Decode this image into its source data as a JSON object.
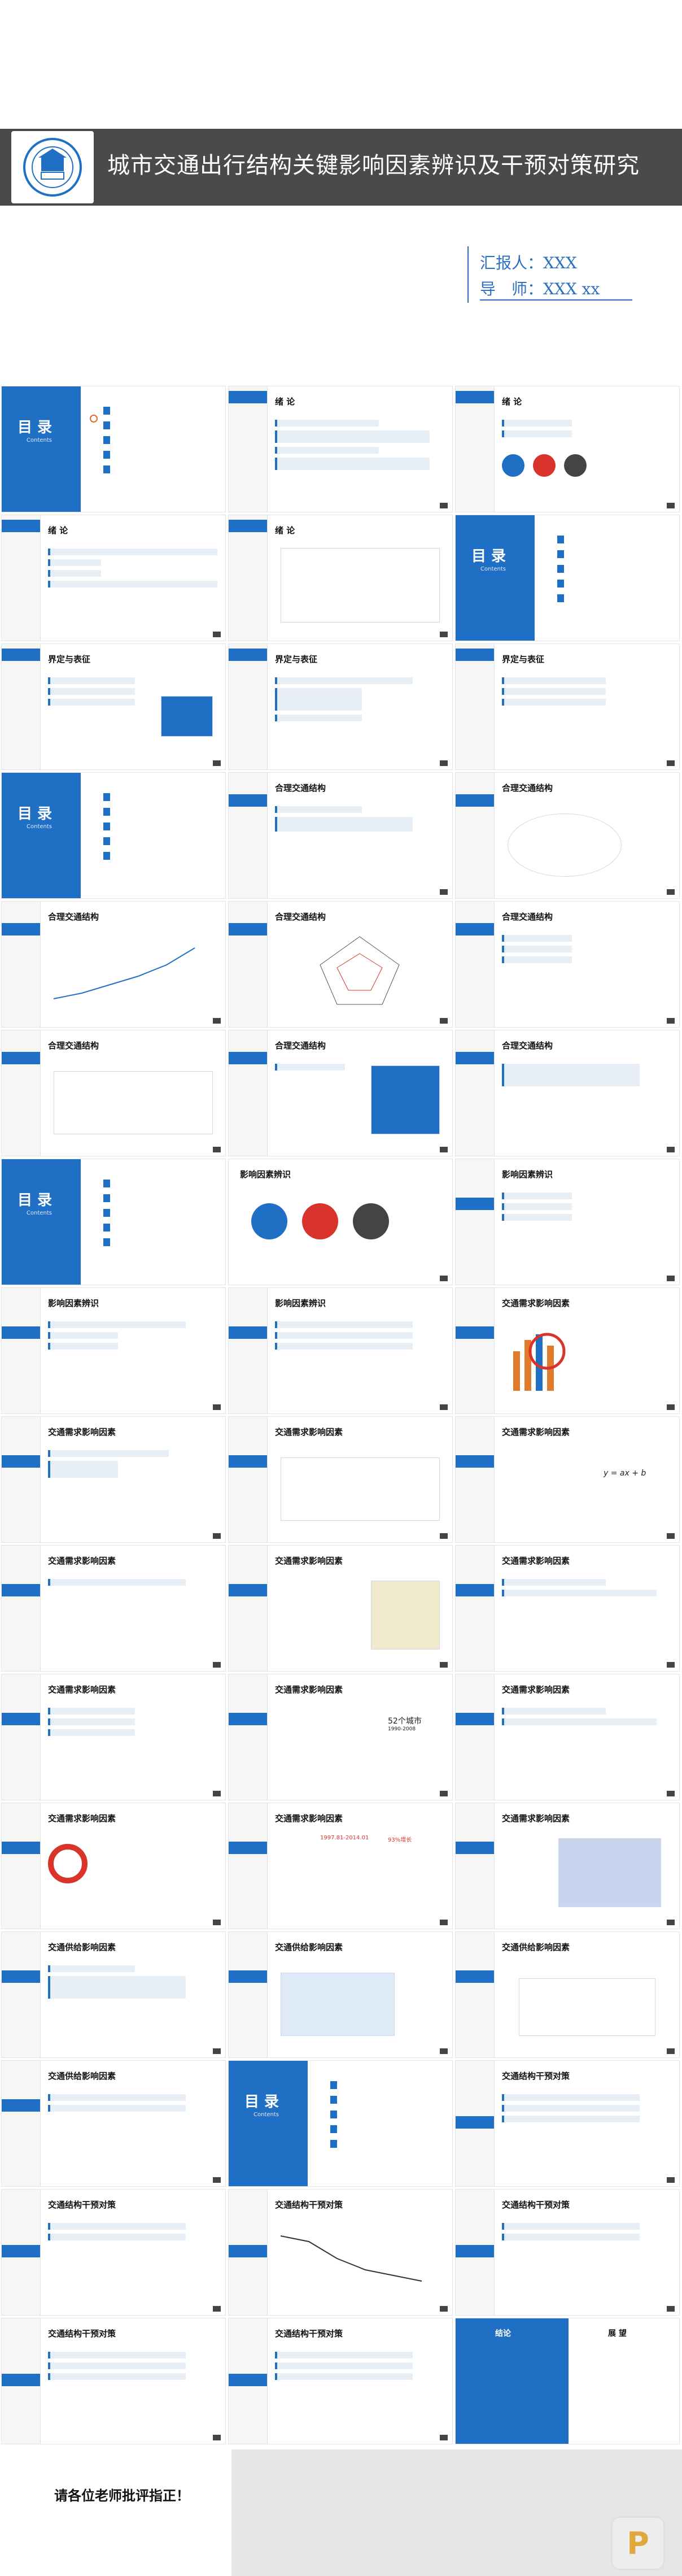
{
  "cover": {
    "title": "城市交通出行结构关键影响因素辨识及干预对策研究",
    "reporter": "汇报人：XXX",
    "advisor": "导　师：XXX xx",
    "logo_text": "HIT"
  },
  "toc_label": "目 录",
  "toc_sub": "Contents",
  "slide_titles": {
    "xulun": "绪 论",
    "jieding": "界定与表征",
    "heli": "合理交通结构",
    "yingxiang": "影响因素辨识",
    "jiaotong_xuqiu": "交通需求影响因素",
    "gongji": "交通供给影响因素",
    "ganyu": "交通结构干预对策",
    "jielun": "结论",
    "zhanwang": "展 望"
  },
  "chart_labels": {
    "city_count": "52个城市",
    "years": "1990-2008",
    "ratio": "1997.81-2014.01",
    "growth": "93%增长",
    "formula": "y = ax + b"
  },
  "closing": {
    "thanks": "请各位老师批评指正！"
  },
  "colors": {
    "accent": "#1f6fc5",
    "header_bar": "#4a4a4a",
    "alert_red": "#d9342b",
    "dark_grey": "#444444"
  }
}
